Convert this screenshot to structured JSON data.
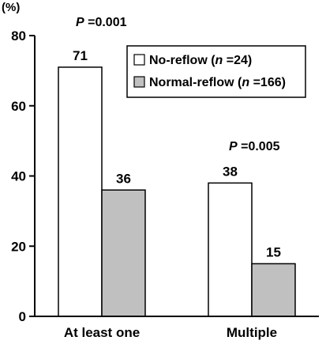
{
  "chart_data": {
    "type": "bar",
    "unit_label": "(%)",
    "categories": [
      "At least one",
      "Multiple"
    ],
    "series": [
      {
        "name_parts": [
          "No-reflow (",
          "n",
          " =24)"
        ],
        "name": "No-reflow (n =24)",
        "color": "#ffffff",
        "values": [
          71,
          38
        ]
      },
      {
        "name_parts": [
          "Normal-reflow (",
          "n",
          " =166)"
        ],
        "name": "Normal-reflow (n =166)",
        "color": "#c0c0c0",
        "values": [
          36,
          15
        ]
      }
    ],
    "ylim": [
      0,
      80
    ],
    "yticks": [
      0,
      20,
      40,
      60,
      80
    ],
    "xlabel": "",
    "ylabel": "",
    "grid": false,
    "legend_position": "top-right",
    "annotations": [
      {
        "category": "At least one",
        "p_symbol": "P",
        "text": "=0.001"
      },
      {
        "category": "Multiple",
        "p_symbol": "P",
        "text": "=0.005"
      }
    ]
  }
}
